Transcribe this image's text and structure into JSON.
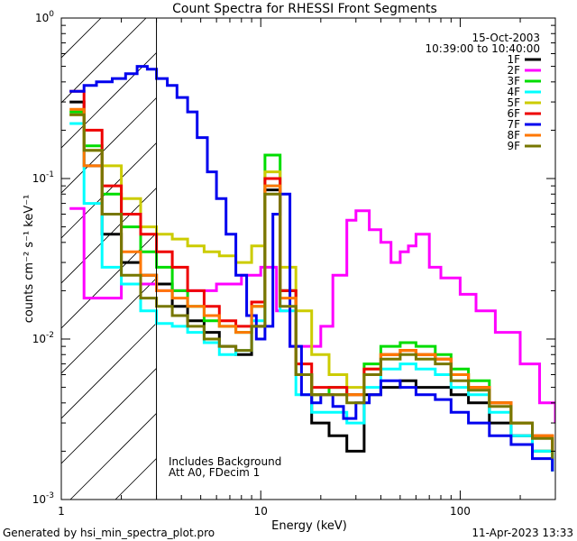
{
  "chart_data": {
    "type": "line",
    "title": "Count Spectra for RHESSI Front Segments",
    "xlabel": "Energy (keV)",
    "ylabel": "counts cm⁻² s⁻¹ keV⁻¹",
    "xscale": "log",
    "yscale": "log",
    "xlim": [
      1,
      300
    ],
    "ylim": [
      0.001,
      1
    ],
    "x_ticks": [
      {
        "value": 1,
        "label": "1"
      },
      {
        "value": 10,
        "label": "10"
      },
      {
        "value": 100,
        "label": "100"
      }
    ],
    "y_ticks": [
      {
        "value": 1,
        "mantissa": "10",
        "exp": "0"
      },
      {
        "value": 0.1,
        "mantissa": "10",
        "exp": "-1"
      },
      {
        "value": 0.01,
        "mantissa": "10",
        "exp": "-2"
      },
      {
        "value": 0.001,
        "mantissa": "10",
        "exp": "-3"
      }
    ],
    "date_label": "15-Oct-2003",
    "time_label": "10:39:00 to 10:40:00",
    "annotations": [
      "Includes Background",
      "Att A0, FDecim 1"
    ],
    "hatched_region": [
      1,
      3
    ],
    "legend_position": "top-right",
    "series": [
      {
        "name": "1F",
        "color": "#000000",
        "x": [
          1.1,
          1.3,
          1.6,
          2.0,
          2.5,
          3.0,
          3.6,
          4.3,
          5.2,
          6.2,
          7.5,
          9.0,
          10.5,
          12.5,
          15,
          18,
          22,
          27,
          33,
          40,
          50,
          60,
          75,
          90,
          110,
          140,
          180,
          230,
          290
        ],
        "y": [
          0.3,
          0.12,
          0.045,
          0.03,
          0.025,
          0.022,
          0.016,
          0.013,
          0.011,
          0.009,
          0.008,
          0.012,
          0.085,
          0.02,
          0.006,
          0.003,
          0.0025,
          0.002,
          0.0045,
          0.005,
          0.0055,
          0.005,
          0.005,
          0.0045,
          0.004,
          0.003,
          0.0025,
          0.002,
          0.0015
        ]
      },
      {
        "name": "2F",
        "color": "#ff00ff",
        "x": [
          1.1,
          1.3,
          1.6,
          2.0,
          2.5,
          3.0,
          4.0,
          6.0,
          8.0,
          10.0,
          12,
          14,
          17,
          20,
          23,
          27,
          30,
          35,
          40,
          45,
          50,
          55,
          60,
          70,
          80,
          100,
          120,
          150,
          200,
          250,
          300
        ],
        "y": [
          0.065,
          0.018,
          0.018,
          0.022,
          0.022,
          0.02,
          0.02,
          0.022,
          0.025,
          0.028,
          0.015,
          0.009,
          0.009,
          0.012,
          0.025,
          0.055,
          0.063,
          0.048,
          0.04,
          0.03,
          0.035,
          0.038,
          0.045,
          0.028,
          0.024,
          0.019,
          0.015,
          0.011,
          0.007,
          0.004,
          0.003
        ]
      },
      {
        "name": "3F",
        "color": "#00dd00",
        "x": [
          1.1,
          1.3,
          1.6,
          2.0,
          2.5,
          3.0,
          3.6,
          4.3,
          5.2,
          6.2,
          7.5,
          9.0,
          10.5,
          12.5,
          15,
          18,
          22,
          27,
          33,
          40,
          50,
          60,
          75,
          90,
          110,
          140,
          180,
          230,
          290
        ],
        "y": [
          0.26,
          0.16,
          0.08,
          0.05,
          0.035,
          0.028,
          0.02,
          0.016,
          0.013,
          0.012,
          0.011,
          0.016,
          0.14,
          0.02,
          0.006,
          0.0045,
          0.005,
          0.0045,
          0.007,
          0.009,
          0.0095,
          0.009,
          0.008,
          0.0065,
          0.0055,
          0.004,
          0.003,
          0.002,
          0.0015
        ]
      },
      {
        "name": "4F",
        "color": "#00ffff",
        "x": [
          1.1,
          1.3,
          1.6,
          2.0,
          2.5,
          3.0,
          3.6,
          4.3,
          5.2,
          6.2,
          7.5,
          9.0,
          10.5,
          12.5,
          15,
          18,
          22,
          27,
          33,
          40,
          50,
          60,
          75,
          90,
          110,
          140,
          180,
          230,
          290
        ],
        "y": [
          0.22,
          0.07,
          0.028,
          0.022,
          0.015,
          0.0125,
          0.012,
          0.011,
          0.0095,
          0.008,
          0.0085,
          0.013,
          0.09,
          0.015,
          0.0045,
          0.0035,
          0.0035,
          0.003,
          0.005,
          0.0065,
          0.007,
          0.0065,
          0.006,
          0.005,
          0.0045,
          0.0035,
          0.0025,
          0.002,
          0.0015
        ]
      },
      {
        "name": "5F",
        "color": "#cccc00",
        "x": [
          1.1,
          1.3,
          1.6,
          2.0,
          2.5,
          3.0,
          3.6,
          4.3,
          5.2,
          6.2,
          7.5,
          9.0,
          10.5,
          12.5,
          15,
          18,
          22,
          27,
          33,
          40,
          50,
          60,
          75,
          90,
          110,
          140,
          180,
          230,
          290
        ],
        "y": [
          0.25,
          0.15,
          0.12,
          0.075,
          0.05,
          0.045,
          0.042,
          0.038,
          0.035,
          0.033,
          0.03,
          0.038,
          0.11,
          0.028,
          0.015,
          0.008,
          0.006,
          0.005,
          0.0065,
          0.008,
          0.0085,
          0.008,
          0.0075,
          0.006,
          0.005,
          0.004,
          0.003,
          0.0025,
          0.002
        ]
      },
      {
        "name": "6F",
        "color": "#ee0000",
        "x": [
          1.1,
          1.3,
          1.6,
          2.0,
          2.5,
          3.0,
          3.6,
          4.3,
          5.2,
          6.2,
          7.5,
          9.0,
          10.5,
          12.5,
          15,
          18,
          22,
          27,
          33,
          40,
          50,
          60,
          75,
          90,
          110,
          140,
          180,
          230,
          290
        ],
        "y": [
          0.35,
          0.2,
          0.09,
          0.06,
          0.045,
          0.035,
          0.028,
          0.02,
          0.016,
          0.013,
          0.012,
          0.017,
          0.1,
          0.02,
          0.007,
          0.005,
          0.005,
          0.0045,
          0.0065,
          0.008,
          0.0085,
          0.008,
          0.0075,
          0.006,
          0.005,
          0.004,
          0.003,
          0.0025,
          0.002
        ]
      },
      {
        "name": "7F",
        "color": "#0000ee",
        "x": [
          1.1,
          1.3,
          1.5,
          1.8,
          2.1,
          2.4,
          2.7,
          3.0,
          3.4,
          3.8,
          4.3,
          4.8,
          5.4,
          6.0,
          6.7,
          7.5,
          8.5,
          9.5,
          10.5,
          11.5,
          12.5,
          14,
          16,
          18,
          20,
          23,
          26,
          30,
          35,
          40,
          50,
          60,
          75,
          90,
          110,
          140,
          180,
          230,
          290
        ],
        "y": [
          0.35,
          0.38,
          0.4,
          0.42,
          0.45,
          0.5,
          0.48,
          0.42,
          0.38,
          0.32,
          0.26,
          0.18,
          0.11,
          0.075,
          0.045,
          0.025,
          0.014,
          0.01,
          0.012,
          0.06,
          0.08,
          0.009,
          0.0045,
          0.004,
          0.0045,
          0.0038,
          0.0032,
          0.004,
          0.0045,
          0.0055,
          0.005,
          0.0045,
          0.0042,
          0.0035,
          0.003,
          0.0025,
          0.0022,
          0.0018,
          0.0015
        ]
      },
      {
        "name": "8F",
        "color": "#ff7700",
        "x": [
          1.1,
          1.3,
          1.6,
          2.0,
          2.5,
          3.0,
          3.6,
          4.3,
          5.2,
          6.2,
          7.5,
          9.0,
          10.5,
          12.5,
          15,
          18,
          22,
          27,
          33,
          40,
          50,
          60,
          75,
          90,
          110,
          140,
          180,
          230,
          290
        ],
        "y": [
          0.27,
          0.12,
          0.06,
          0.035,
          0.025,
          0.02,
          0.018,
          0.016,
          0.014,
          0.012,
          0.011,
          0.016,
          0.09,
          0.018,
          0.006,
          0.0045,
          0.0045,
          0.0045,
          0.006,
          0.008,
          0.0085,
          0.008,
          0.0075,
          0.006,
          0.005,
          0.004,
          0.003,
          0.0025,
          0.002
        ]
      },
      {
        "name": "9F",
        "color": "#777700",
        "x": [
          1.1,
          1.3,
          1.6,
          2.0,
          2.5,
          3.0,
          3.6,
          4.3,
          5.2,
          6.2,
          7.5,
          9.0,
          10.5,
          12.5,
          15,
          18,
          22,
          27,
          33,
          40,
          50,
          60,
          75,
          90,
          110,
          140,
          180,
          230,
          290
        ],
        "y": [
          0.25,
          0.15,
          0.06,
          0.025,
          0.018,
          0.016,
          0.014,
          0.012,
          0.01,
          0.009,
          0.0085,
          0.012,
          0.08,
          0.016,
          0.006,
          0.0045,
          0.0045,
          0.004,
          0.006,
          0.0075,
          0.008,
          0.0075,
          0.007,
          0.0055,
          0.0048,
          0.0038,
          0.003,
          0.0024,
          0.0018
        ]
      }
    ]
  },
  "footer": {
    "generated_by": "Generated by hsi_min_spectra_plot.pro",
    "timestamp": "11-Apr-2023 13:33"
  }
}
